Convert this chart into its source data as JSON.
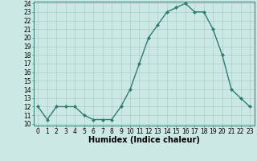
{
  "x": [
    0,
    1,
    2,
    3,
    4,
    5,
    6,
    7,
    8,
    9,
    10,
    11,
    12,
    13,
    14,
    15,
    16,
    17,
    18,
    19,
    20,
    21,
    22,
    23
  ],
  "y": [
    12,
    10.5,
    12,
    12,
    12,
    11,
    10.5,
    10.5,
    10.5,
    12,
    14,
    17,
    20,
    21.5,
    23,
    23.5,
    24,
    23,
    23,
    21,
    18,
    14,
    13,
    12
  ],
  "xlabel": "Humidex (Indice chaleur)",
  "ylim": [
    10,
    24
  ],
  "xlim": [
    -0.5,
    23.5
  ],
  "yticks": [
    10,
    11,
    12,
    13,
    14,
    15,
    16,
    17,
    18,
    19,
    20,
    21,
    22,
    23,
    24
  ],
  "xticks": [
    0,
    1,
    2,
    3,
    4,
    5,
    6,
    7,
    8,
    9,
    10,
    11,
    12,
    13,
    14,
    15,
    16,
    17,
    18,
    19,
    20,
    21,
    22,
    23
  ],
  "line_color": "#2e7d6e",
  "bg_color": "#cce8e4",
  "grid_color": "#aacfca",
  "marker": "D",
  "marker_size": 2.0,
  "line_width": 1.0,
  "xlabel_fontsize": 7,
  "tick_fontsize": 5.5
}
